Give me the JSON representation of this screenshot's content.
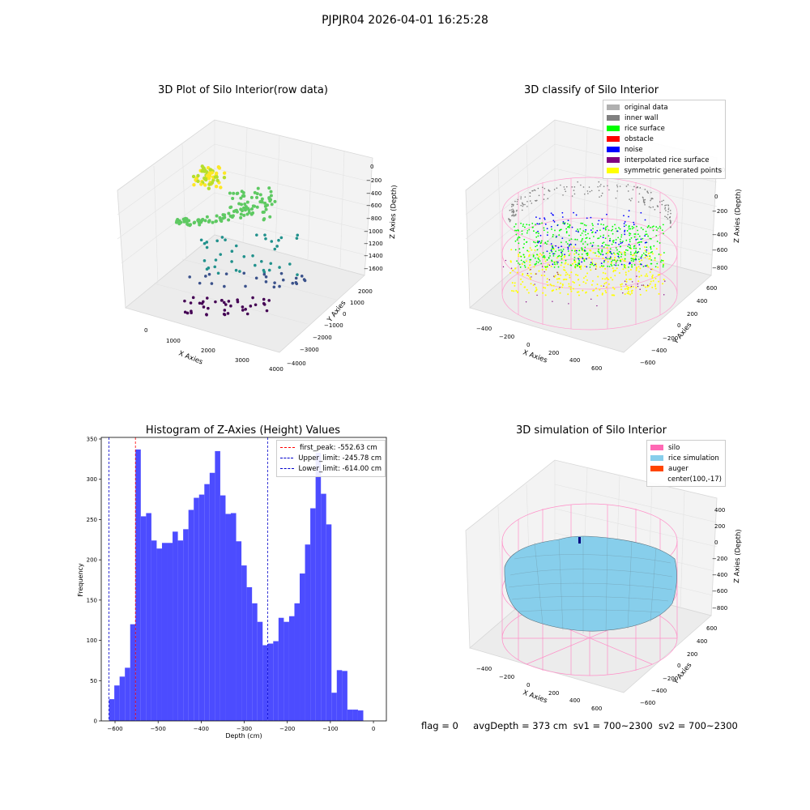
{
  "suptitle": "PJPJR04 2026-04-01 16:25:28",
  "footer": {
    "flag": "flag = 0",
    "avgDepth": "avgDepth = 373 cm",
    "sv1": "sv1 = 700~2300",
    "sv2": "sv2 = 700~2300"
  },
  "colors": {
    "histogram_bar": "#4c4cff",
    "first_peak": "#ff0000",
    "limits": "#0000cc",
    "silo": "#ff69b4",
    "rice_simulation": "#87ceeb",
    "auger": "#ff4500"
  },
  "plot1": {
    "title": "3D Plot of Silo Interior(row data)",
    "xlabel": "X Axies",
    "ylabel": "Y Axies",
    "zlabel": "Z Axies (Depth)",
    "xticks": [
      "0",
      "1000",
      "2000",
      "3000",
      "4000"
    ],
    "yticks": [
      "2000",
      "1000",
      "0",
      "−1000",
      "−2000",
      "−3000",
      "−4000"
    ],
    "zticks": [
      "0",
      "−200",
      "−400",
      "−600",
      "−800",
      "−1000",
      "−1200",
      "−1400",
      "−1600"
    ],
    "colormap": "viridis"
  },
  "plot2": {
    "title": "3D classify of Silo Interior",
    "xlabel": "X Axies",
    "ylabel": "Y Axies",
    "zlabel": "Z Axies (Depth)",
    "xticks": [
      "−400",
      "−200",
      "0",
      "200",
      "400",
      "600"
    ],
    "yticks": [
      "600",
      "400",
      "200",
      "0",
      "−200",
      "−400",
      "−600"
    ],
    "zticks": [
      "200",
      "0",
      "−200",
      "−400",
      "−600",
      "−800"
    ],
    "legend": [
      {
        "label": "original data",
        "color": "#b0b0b0"
      },
      {
        "label": "inner wall",
        "color": "#808080"
      },
      {
        "label": "rice surface",
        "color": "#00ff00"
      },
      {
        "label": "obstacle",
        "color": "#ff0000"
      },
      {
        "label": "noise",
        "color": "#0000ff"
      },
      {
        "label": "interpolated rice surface",
        "color": "#800080"
      },
      {
        "label": "symmetric generated points",
        "color": "#ffff00"
      }
    ]
  },
  "plot4": {
    "title": "3D simulation of Silo Interior",
    "xlabel": "X Axies",
    "ylabel": "Y Axies",
    "zlabel": "Z Axies (Depth)",
    "xticks": [
      "−400",
      "−200",
      "0",
      "200",
      "400",
      "600"
    ],
    "yticks": [
      "600",
      "400",
      "200",
      "0",
      "−200",
      "−400",
      "−600"
    ],
    "zticks": [
      "400",
      "200",
      "0",
      "−200",
      "−400",
      "−600",
      "−800"
    ],
    "legend": [
      {
        "label": "silo",
        "color": "#ff69b4"
      },
      {
        "label": "rice simulation",
        "color": "#87ceeb"
      },
      {
        "label": "auger",
        "color": "#ff4500"
      },
      {
        "label": "center(100,-17)",
        "color": ""
      }
    ]
  },
  "chart_data": [
    {
      "type": "histogram",
      "title": "Histogram of Z-Axies (Height) Values",
      "xlabel": "Depth (cm)",
      "ylabel": "Frequency",
      "xlim": [
        -632,
        30
      ],
      "ylim": [
        0,
        352
      ],
      "xticks": [
        -600,
        -500,
        -400,
        -300,
        -200,
        -100,
        0
      ],
      "xtick_labels": [
        "−600",
        "−500",
        "−400",
        "−300",
        "−200",
        "−100",
        "0"
      ],
      "yticks": [
        0,
        50,
        100,
        150,
        200,
        250,
        300,
        350
      ],
      "bin_start": -614,
      "bin_width": 12.3,
      "counts": [
        27,
        44,
        55,
        66,
        120,
        337,
        254,
        258,
        224,
        214,
        221,
        221,
        235,
        224,
        238,
        262,
        277,
        281,
        294,
        308,
        335,
        280,
        257,
        258,
        223,
        193,
        166,
        146,
        123,
        94,
        96,
        99,
        128,
        123,
        130,
        146,
        183,
        219,
        264,
        333,
        282,
        244,
        35,
        63,
        62,
        14,
        14,
        13
      ],
      "vlines": [
        {
          "name": "first_peak",
          "label": "first_peak: -552.63 cm",
          "x": -552.63,
          "color": "#ff0000"
        },
        {
          "name": "upper_limit",
          "label": "Upper_limit: -245.78 cm",
          "x": -245.78,
          "color": "#0000cc"
        },
        {
          "name": "lower_limit",
          "label": "Lower_limit: -614.00 cm",
          "x": -614.0,
          "color": "#0000cc"
        }
      ],
      "legend_placement": "top-right"
    }
  ]
}
